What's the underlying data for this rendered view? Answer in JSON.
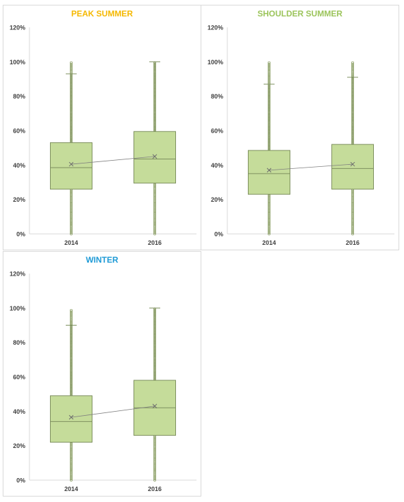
{
  "chart_data": [
    {
      "type": "box",
      "title": "PEAK SUMMER",
      "title_color": "#f5b800",
      "categories": [
        "2014",
        "2016"
      ],
      "ylim": [
        0,
        1.2
      ],
      "yticks": [
        0,
        0.2,
        0.4,
        0.6,
        0.8,
        1.0,
        1.2
      ],
      "ytick_labels": [
        "0%",
        "20%",
        "40%",
        "60%",
        "80%",
        "100%",
        "120%"
      ],
      "boxes": [
        {
          "category": "2014",
          "min": 0.0,
          "q1": 0.26,
          "median": 0.385,
          "mean": 0.405,
          "q3": 0.53,
          "whisker_high": 0.93,
          "outlier_max": 1.0
        },
        {
          "category": "2016",
          "min": 0.0,
          "q1": 0.295,
          "median": 0.435,
          "mean": 0.45,
          "q3": 0.595,
          "whisker_high": 1.0,
          "outlier_max": 1.0
        }
      ],
      "grid": false,
      "legend": "none"
    },
    {
      "type": "box",
      "title": "SHOULDER SUMMER",
      "title_color": "#9bc45a",
      "categories": [
        "2014",
        "2016"
      ],
      "ylim": [
        0,
        1.2
      ],
      "yticks": [
        0,
        0.2,
        0.4,
        0.6,
        0.8,
        1.0,
        1.2
      ],
      "ytick_labels": [
        "0%",
        "20%",
        "40%",
        "60%",
        "80%",
        "100%",
        "120%"
      ],
      "boxes": [
        {
          "category": "2014",
          "min": 0.0,
          "q1": 0.23,
          "median": 0.35,
          "mean": 0.37,
          "q3": 0.485,
          "whisker_high": 0.87,
          "outlier_max": 1.0
        },
        {
          "category": "2016",
          "min": 0.0,
          "q1": 0.26,
          "median": 0.38,
          "mean": 0.405,
          "q3": 0.52,
          "whisker_high": 0.91,
          "outlier_max": 1.0
        }
      ],
      "grid": false,
      "legend": "none"
    },
    {
      "type": "box",
      "title": "WINTER",
      "title_color": "#1e9ad6",
      "categories": [
        "2014",
        "2016"
      ],
      "ylim": [
        0,
        1.2
      ],
      "yticks": [
        0,
        0.2,
        0.4,
        0.6,
        0.8,
        1.0,
        1.2
      ],
      "ytick_labels": [
        "0%",
        "20%",
        "40%",
        "60%",
        "80%",
        "100%",
        "120%"
      ],
      "boxes": [
        {
          "category": "2014",
          "min": 0.0,
          "q1": 0.22,
          "median": 0.34,
          "mean": 0.365,
          "q3": 0.49,
          "whisker_high": 0.9,
          "outlier_max": 0.99
        },
        {
          "category": "2016",
          "min": 0.0,
          "q1": 0.26,
          "median": 0.42,
          "mean": 0.43,
          "q3": 0.58,
          "whisker_high": 1.0,
          "outlier_max": 1.0
        }
      ],
      "grid": false,
      "legend": "none"
    }
  ],
  "colors": {
    "box_fill": "#c5dc9a",
    "box_stroke": "#7d8f5e",
    "outlier_stroke": "#8fa26a",
    "axis_text": "#404040"
  }
}
